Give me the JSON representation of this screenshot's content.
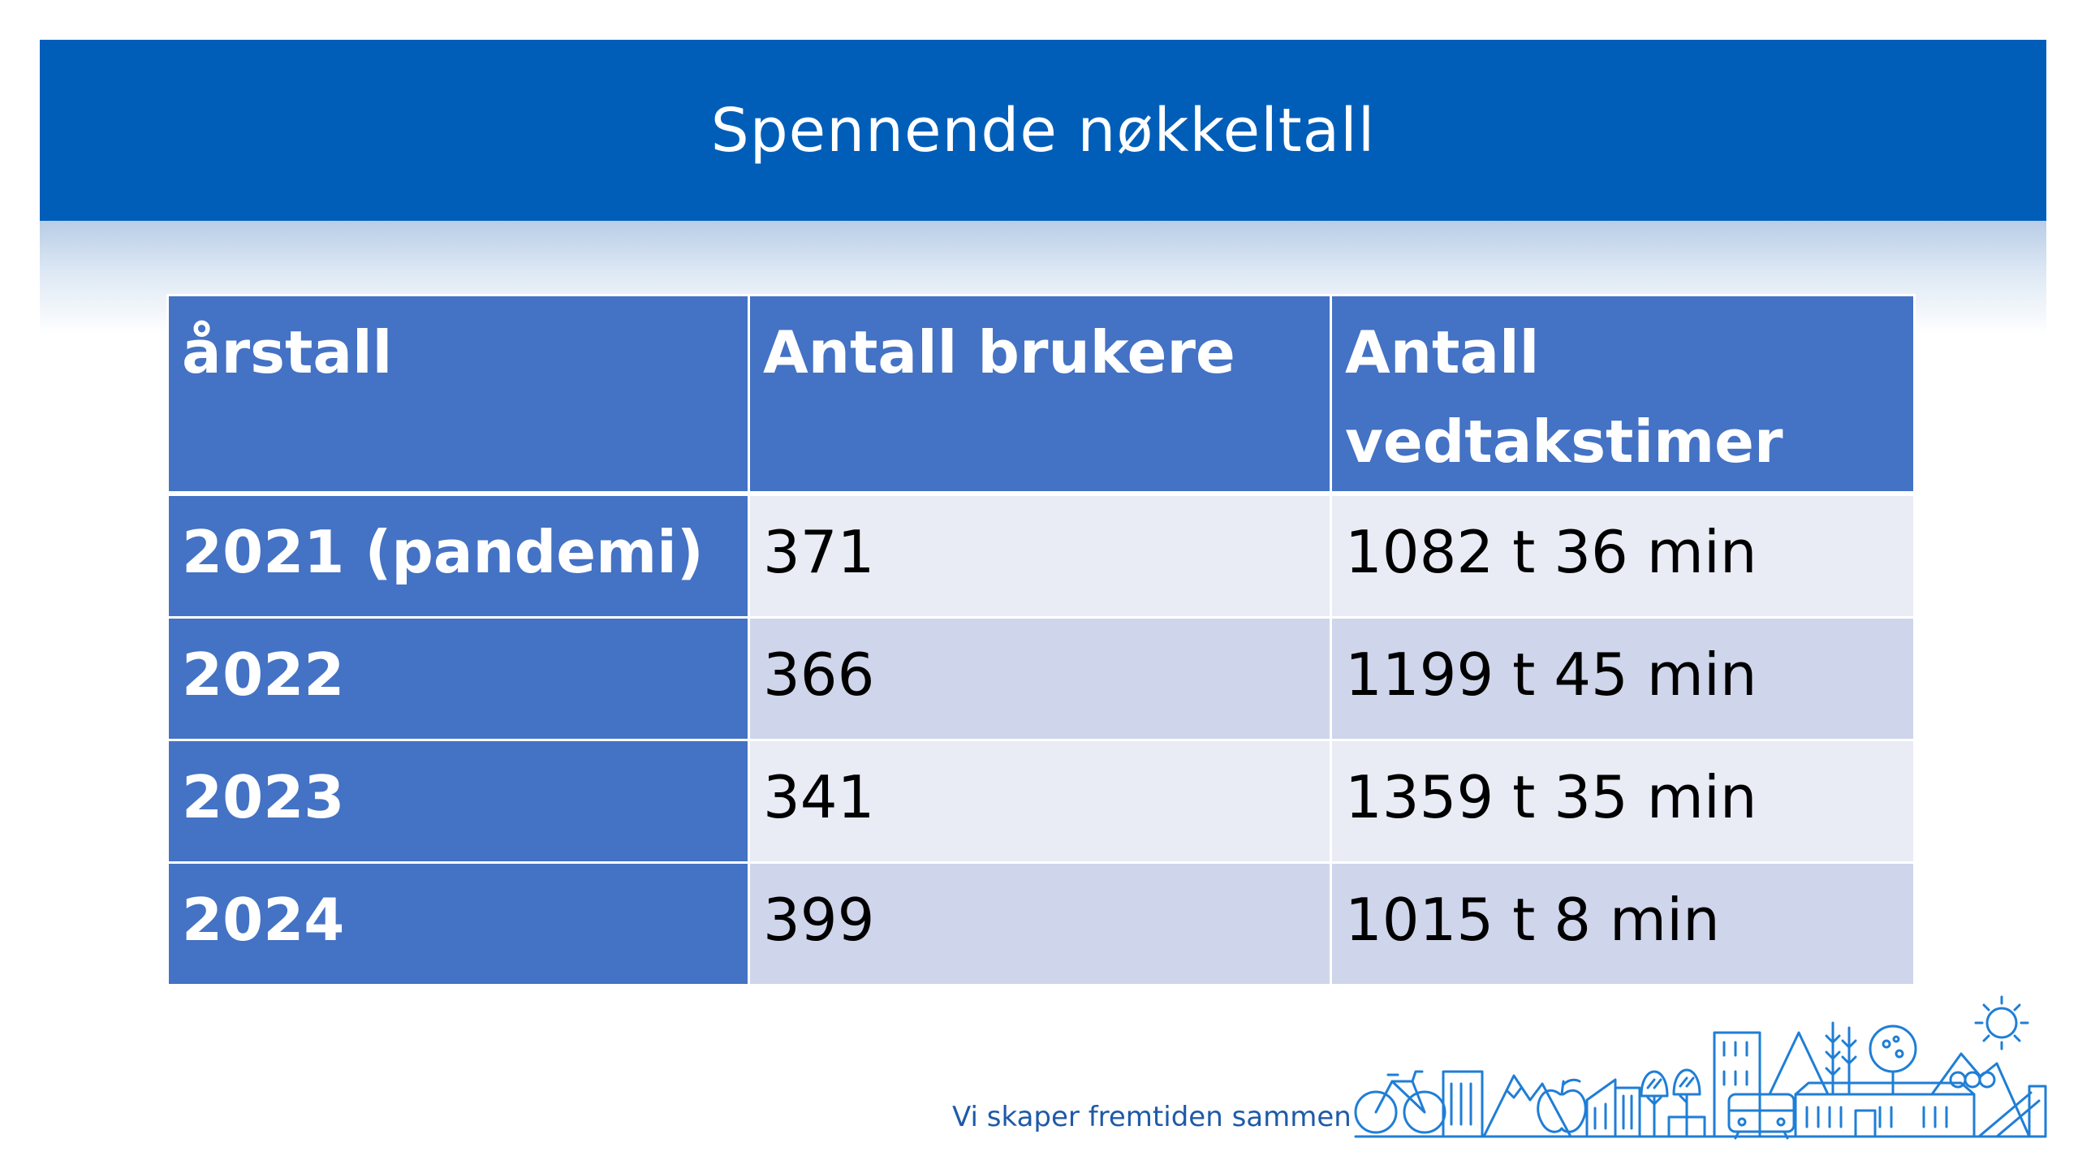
{
  "slide": {
    "title": "Spennende nøkkeltall",
    "footer_slogan": "Vi skaper fremtiden sammen"
  },
  "table": {
    "headers": [
      "årstall",
      "Antall brukere",
      "Antall vedtakstimer"
    ],
    "rows": [
      [
        "2021  (pandemi)",
        "371",
        "1082 t 36 min"
      ],
      [
        "2022",
        "366",
        "1199 t 45 min"
      ],
      [
        "2023",
        "341",
        "1359 t 35 min"
      ],
      [
        "2024",
        "399",
        "1015 t 8 min"
      ]
    ]
  },
  "colors": {
    "header_bar": "#005eb8",
    "table_header": "#4472c4",
    "row_band_dark": "#cfd5ea",
    "row_band_light": "#e9ebf5",
    "illustration_line": "#1f7ed6"
  },
  "icons": {
    "footer_illustration": "city-landscape-line-art"
  }
}
